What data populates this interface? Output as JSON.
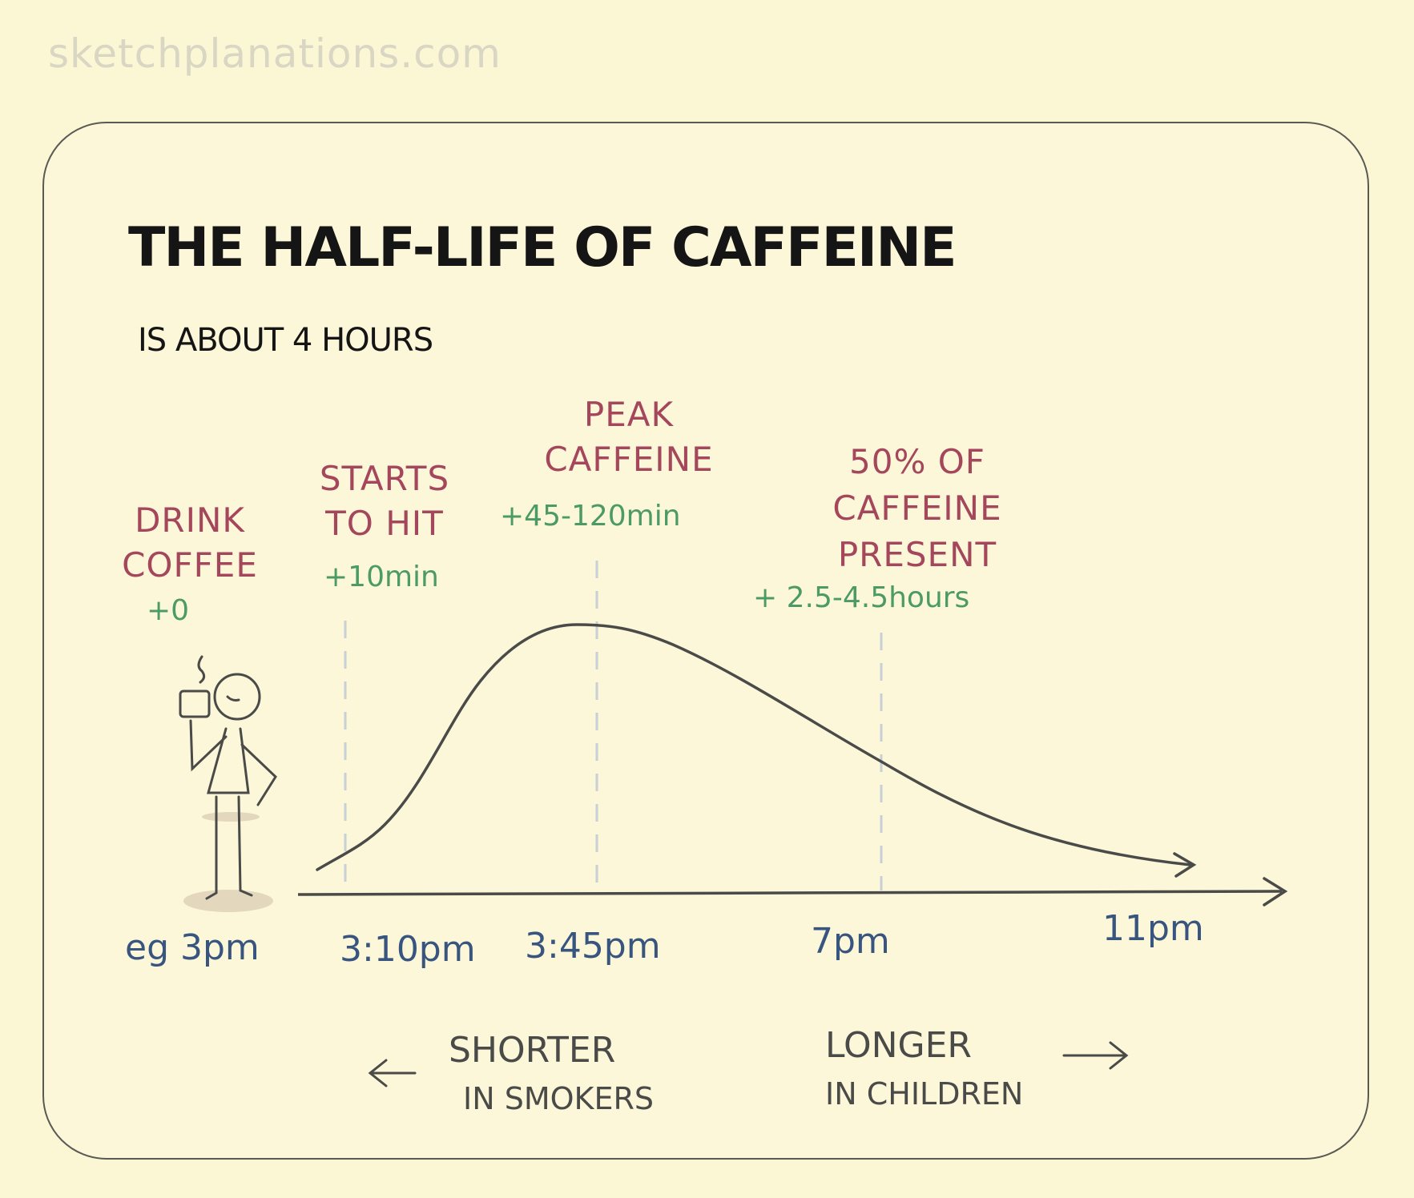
{
  "watermark": "sketchplanations.com",
  "title": "THE HALF-LIFE OF CAFFEINE",
  "subtitle": "IS ABOUT 4 HOURS",
  "stages": [
    {
      "label_lines": [
        "DRINK",
        "COFFEE"
      ],
      "offset": "+0",
      "time": "eg  3pm"
    },
    {
      "label_lines": [
        "STARTS",
        "TO HIT"
      ],
      "offset": "+10min",
      "time": "3:10pm"
    },
    {
      "label_lines": [
        "PEAK",
        "CAFFEINE"
      ],
      "offset": "+45-120min",
      "time": "3:45pm"
    },
    {
      "label_lines": [
        "50% OF",
        "CAFFEINE",
        "PRESENT"
      ],
      "offset": "+ 2.5-4.5hours",
      "time": "7pm"
    },
    {
      "time": "11pm"
    }
  ],
  "notes": {
    "shorter": {
      "line1": "SHORTER",
      "line2": "IN SMOKERS",
      "arrow": "left-arrow-icon"
    },
    "longer": {
      "line1": "LONGER",
      "line2": "IN CHILDREN",
      "arrow": "right-arrow-icon"
    }
  },
  "colors": {
    "background": "#fbf6d4",
    "event_label": "#a4475c",
    "time_offset": "#4c9a66",
    "clock_time": "#38557f",
    "curve": "#4a4a48"
  }
}
